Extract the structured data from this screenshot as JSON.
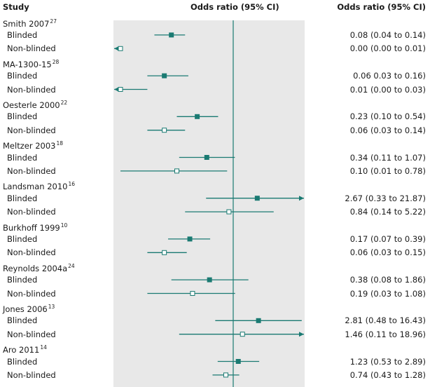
{
  "header": {
    "study_label": "Study",
    "plot_label": "Odds ratio (95% CI)",
    "ci_label": "Odds ratio (95% CI)"
  },
  "colors": {
    "marker": "#1a7a72",
    "panel": "#e8e8e8",
    "reference_line": "#1a7a72"
  },
  "chart_data": {
    "type": "forest",
    "scale": "log",
    "reference_value": 1,
    "xlim": [
      0.001,
      40
    ],
    "studies": [
      {
        "name": "Smith 2007",
        "ref": "27",
        "rows": [
          {
            "label": "Blinded",
            "or": 0.08,
            "lo": 0.04,
            "hi": 0.14,
            "text": "0.08 (0.04 to 0.14)"
          },
          {
            "label": "Non-blinded",
            "or": 0.0,
            "lo": 0.0,
            "hi": 0.01,
            "text": "0.00 (0.00 to 0.01)"
          }
        ]
      },
      {
        "name": "MA-1300-15",
        "ref": "28",
        "rows": [
          {
            "label": "Blinded",
            "or": 0.06,
            "lo": 0.03,
            "hi": 0.16,
            "text": "0.06 0.03 to 0.16)"
          },
          {
            "label": "Non-blinded",
            "or": 0.01,
            "lo": 0.0,
            "hi": 0.03,
            "text": "0.01 (0.00 to 0.03)"
          }
        ]
      },
      {
        "name": "Oesterle 2000",
        "ref": "22",
        "rows": [
          {
            "label": "Blinded",
            "or": 0.23,
            "lo": 0.1,
            "hi": 0.54,
            "text": "0.23 (0.10 to 0.54)"
          },
          {
            "label": "Non-blinded",
            "or": 0.06,
            "lo": 0.03,
            "hi": 0.14,
            "text": "0.06 (0.03 to 0.14)"
          }
        ]
      },
      {
        "name": "Meltzer 2003",
        "ref": "18",
        "rows": [
          {
            "label": "Blinded",
            "or": 0.34,
            "lo": 0.11,
            "hi": 1.07,
            "text": "0.34 (0.11 to 1.07)"
          },
          {
            "label": "Non-blinded",
            "or": 0.1,
            "lo": 0.01,
            "hi": 0.78,
            "text": "0.10 (0.01 to 0.78)"
          }
        ]
      },
      {
        "name": "Landsman 2010",
        "ref": "16",
        "rows": [
          {
            "label": "Blinded",
            "or": 2.67,
            "lo": 0.33,
            "hi": 21.87,
            "text": "2.67 (0.33 to 21.87)"
          },
          {
            "label": "Non-blinded",
            "or": 0.84,
            "lo": 0.14,
            "hi": 5.22,
            "text": "0.84 (0.14 to 5.22)"
          }
        ]
      },
      {
        "name": "Burkhoff 1999",
        "ref": "10",
        "rows": [
          {
            "label": "Blinded",
            "or": 0.17,
            "lo": 0.07,
            "hi": 0.39,
            "text": "0.17 (0.07 to 0.39)"
          },
          {
            "label": "Non-blinded",
            "or": 0.06,
            "lo": 0.03,
            "hi": 0.15,
            "text": "0.06 (0.03 to 0.15)"
          }
        ]
      },
      {
        "name": "Reynolds 2004a",
        "ref": "24",
        "rows": [
          {
            "label": "Blinded",
            "or": 0.38,
            "lo": 0.08,
            "hi": 1.86,
            "text": "0.38 (0.08 to 1.86)"
          },
          {
            "label": "Non-blinded",
            "or": 0.19,
            "lo": 0.03,
            "hi": 1.08,
            "text": "0.19 (0.03 to 1.08)"
          }
        ]
      },
      {
        "name": "Jones 2006",
        "ref": "13",
        "rows": [
          {
            "label": "Blinded",
            "or": 2.81,
            "lo": 0.48,
            "hi": 16.43,
            "text": "2.81 (0.48 to 16.43)"
          },
          {
            "label": "Non-blinded",
            "or": 1.46,
            "lo": 0.11,
            "hi": 18.96,
            "text": "1.46 (0.11 to 18.96)"
          }
        ]
      },
      {
        "name": "Aro 2011",
        "ref": "14",
        "rows": [
          {
            "label": "Blinded",
            "or": 1.23,
            "lo": 0.53,
            "hi": 2.89,
            "text": "1.23 (0.53 to 2.89)"
          },
          {
            "label": "Non-blinded",
            "or": 0.74,
            "lo": 0.43,
            "hi": 1.28,
            "text": "0.74 (0.43 to 1.28)"
          }
        ]
      }
    ]
  }
}
